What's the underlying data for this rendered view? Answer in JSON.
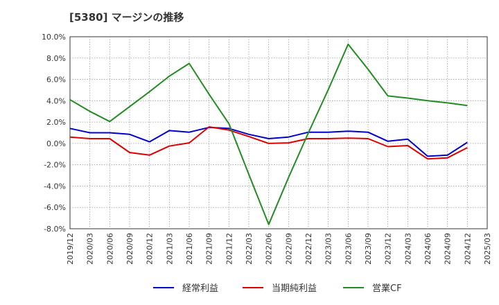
{
  "chart_data": {
    "type": "line",
    "title": "[5380]  マージンの推移",
    "x": [
      "2019/12",
      "2020/03",
      "2020/06",
      "2020/09",
      "2020/12",
      "2021/03",
      "2021/06",
      "2021/09",
      "2021/12",
      "2022/03",
      "2022/06",
      "2022/09",
      "2022/12",
      "2023/03",
      "2023/06",
      "2023/09",
      "2023/12",
      "2024/03",
      "2024/06",
      "2024/09",
      "2024/12",
      "2025/03"
    ],
    "y_ticks": [
      "10.0%",
      "8.0%",
      "6.0%",
      "4.0%",
      "2.0%",
      "0.0%",
      "-2.0%",
      "-4.0%",
      "-6.0%",
      "-8.0%"
    ],
    "ylim": [
      -8,
      10
    ],
    "grid": true,
    "legend_position": "bottom",
    "series": [
      {
        "name": "経常利益",
        "color": "#0000cc",
        "values": [
          1.4,
          1.0,
          1.0,
          0.85,
          0.15,
          1.2,
          1.05,
          1.5,
          1.4,
          0.85,
          0.45,
          0.6,
          1.05,
          1.05,
          1.15,
          1.05,
          0.2,
          0.4,
          -1.2,
          -1.1,
          0.1,
          null
        ]
      },
      {
        "name": "当期純利益",
        "color": "#dd0000",
        "values": [
          0.6,
          0.45,
          0.45,
          -0.85,
          -1.1,
          -0.25,
          0.05,
          1.55,
          1.25,
          0.65,
          0.0,
          0.05,
          0.45,
          0.45,
          0.5,
          0.45,
          -0.3,
          -0.2,
          -1.45,
          -1.35,
          -0.4,
          null
        ]
      },
      {
        "name": "営業CF",
        "color": "#228b22",
        "values": [
          4.1,
          3.0,
          2.05,
          3.45,
          4.85,
          6.3,
          7.5,
          4.6,
          1.85,
          -2.9,
          -7.6,
          -3.2,
          1.0,
          5.05,
          9.3,
          6.95,
          4.45,
          4.25,
          4.0,
          3.8,
          3.55,
          null
        ]
      }
    ]
  }
}
